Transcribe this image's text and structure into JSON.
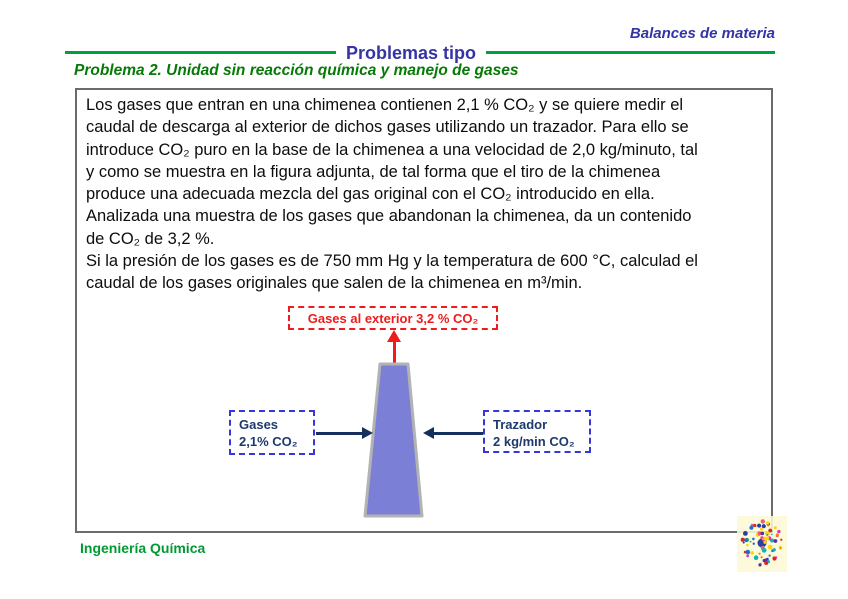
{
  "slide": {
    "course_title": "Balances de materia",
    "section_title": "Problemas tipo",
    "problem_title": "Problema 2. Unidad sin reacción química y manejo de gases",
    "footer": "Ingeniería Química"
  },
  "problem_text": {
    "lines": [
      "Los gases que entran en una chimenea contienen 2,1 % CO₂ y se quiere medir el",
      "caudal de descarga al exterior de dichos gases utilizando un trazador. Para ello se",
      "introduce CO₂ puro en la base de la chimenea a una velocidad de 2,0 kg/minuto, tal",
      "y como se muestra en la figura adjunta, de tal forma que el tiro de la chimenea",
      "produce una adecuada mezcla del gas original con el CO₂ introducido en ella.",
      "Analizada una muestra de los gases que abandonan la chimenea, da un contenido",
      "de CO₂ de 3,2 %.",
      "Si la presión de los gases es de 750 mm Hg y la temperatura de 600 °C, calculad el",
      "caudal de los gases originales que salen de la chimenea en m³/min."
    ]
  },
  "diagram": {
    "outlet_label": "Gases al exterior 3,2 % CO₂",
    "feed_label_line1": "Gases",
    "feed_label_line2": "2,1% CO₂",
    "tracer_label_line1": "Trazador",
    "tracer_label_line2": "2 kg/min CO₂"
  },
  "colors": {
    "title_navy": "#3434a6",
    "rule_green": "#00a03c",
    "problem_title_green": "#067a06",
    "footer_green": "#009a33",
    "outlet_red": "#ee1c1c",
    "label_box_blue": "#3636d9",
    "label_text_navy": "#1d3a6e",
    "arrow_navy": "#16305e",
    "chimney_fill": "#7b80d6",
    "chimney_stroke": "#b3b3b3",
    "seal_palette": [
      "#d62828",
      "#1d6fd6",
      "#1faa59",
      "#f77f00",
      "#d936c8",
      "#12b5b0",
      "#ffd60a",
      "#5a2ca0",
      "#e85d75",
      "#2a3f9f"
    ]
  }
}
